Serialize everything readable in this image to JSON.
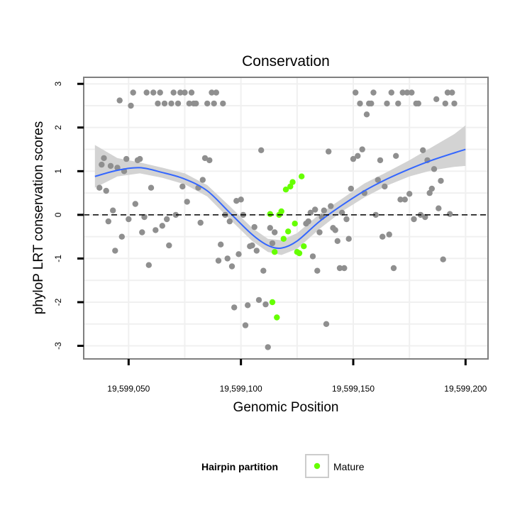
{
  "chart_data": {
    "type": "scatter",
    "title": "Conservation",
    "xlabel": "Genomic Position",
    "ylabel": "phyloP LRT conservation scores",
    "xlim": [
      19599030,
      19599210
    ],
    "ylim": [
      -3.3,
      3.15
    ],
    "x_ticks": [
      19599050,
      19599100,
      19599150,
      19599200
    ],
    "x_tick_labels": [
      "19,599,050",
      "19,599,100",
      "19,599,150",
      "19,599,200"
    ],
    "y_ticks": [
      -3,
      -2,
      -1,
      0,
      1,
      2,
      3
    ],
    "y_tick_labels": [
      "-3",
      "-2",
      "-1",
      "0",
      "1",
      "2",
      "3"
    ],
    "reference_line": {
      "y": 0,
      "style": "dashed",
      "color": "#000000"
    },
    "grid": true,
    "colors": {
      "other_points": "#8f8f8f",
      "mature_points": "#66ff00",
      "smooth_line": "#3366ff",
      "confidence_band": "#d3d3d3",
      "panel_border": "#7f7f7f",
      "grid": "#f0f0f0"
    },
    "legend": {
      "title": "Hairpin partition",
      "placement": "bottom",
      "entries": [
        {
          "label": "Mature",
          "color": "#66ff00"
        }
      ]
    },
    "series": [
      {
        "group": "other",
        "points": [
          [
            19599037,
            0.62
          ],
          [
            19599038,
            1.15
          ],
          [
            19599039,
            1.3
          ],
          [
            19599040,
            0.55
          ],
          [
            19599041,
            -0.15
          ],
          [
            19599042,
            1.12
          ],
          [
            19599043,
            0.1
          ],
          [
            19599044,
            -0.82
          ],
          [
            19599045,
            1.08
          ],
          [
            19599046,
            2.62
          ],
          [
            19599047,
            -0.5
          ],
          [
            19599048,
            1.0
          ],
          [
            19599049,
            1.28
          ],
          [
            19599050,
            -0.1
          ],
          [
            19599051,
            2.5
          ],
          [
            19599052,
            2.8
          ],
          [
            19599053,
            0.25
          ],
          [
            19599054,
            1.25
          ],
          [
            19599055,
            1.28
          ],
          [
            19599056,
            -0.4
          ],
          [
            19599057,
            -0.05
          ],
          [
            19599058,
            2.8
          ],
          [
            19599059,
            -1.15
          ],
          [
            19599060,
            0.62
          ],
          [
            19599061,
            2.8
          ],
          [
            19599062,
            -0.35
          ],
          [
            19599063,
            2.55
          ],
          [
            19599064,
            2.8
          ],
          [
            19599065,
            -0.25
          ],
          [
            19599066,
            2.55
          ],
          [
            19599067,
            -0.1
          ],
          [
            19599068,
            -0.7
          ],
          [
            19599069,
            2.55
          ],
          [
            19599070,
            2.8
          ],
          [
            19599071,
            0.0
          ],
          [
            19599072,
            2.55
          ],
          [
            19599073,
            2.8
          ],
          [
            19599074,
            0.65
          ],
          [
            19599075,
            2.8
          ],
          [
            19599076,
            0.3
          ],
          [
            19599077,
            2.55
          ],
          [
            19599078,
            2.8
          ],
          [
            19599079,
            2.55
          ],
          [
            19599080,
            2.55
          ],
          [
            19599081,
            0.62
          ],
          [
            19599082,
            -0.18
          ],
          [
            19599083,
            0.8
          ],
          [
            19599084,
            1.3
          ],
          [
            19599085,
            2.55
          ],
          [
            19599086,
            1.25
          ],
          [
            19599087,
            2.8
          ],
          [
            19599088,
            2.55
          ],
          [
            19599089,
            2.8
          ],
          [
            19599090,
            -1.05
          ],
          [
            19599091,
            -0.68
          ],
          [
            19599092,
            2.55
          ],
          [
            19599093,
            0.0
          ],
          [
            19599094,
            -1.0
          ],
          [
            19599095,
            -0.15
          ],
          [
            19599096,
            -1.18
          ],
          [
            19599097,
            -2.12
          ],
          [
            19599098,
            0.32
          ],
          [
            19599099,
            -0.9
          ],
          [
            19599100,
            0.35
          ],
          [
            19599101,
            0.0
          ],
          [
            19599102,
            -2.53
          ],
          [
            19599103,
            -2.07
          ],
          [
            19599104,
            -0.72
          ],
          [
            19599105,
            -0.7
          ],
          [
            19599106,
            -0.28
          ],
          [
            19599107,
            -0.82
          ],
          [
            19599108,
            -1.95
          ],
          [
            19599109,
            1.48
          ],
          [
            19599110,
            -1.28
          ],
          [
            19599111,
            -2.05
          ],
          [
            19599112,
            -3.03
          ],
          [
            19599113,
            -0.3
          ],
          [
            19599114,
            -0.65
          ],
          [
            19599115,
            -0.4
          ],
          [
            19599129,
            -0.2
          ],
          [
            19599130,
            -0.15
          ],
          [
            19599131,
            0.05
          ],
          [
            19599132,
            -0.95
          ],
          [
            19599133,
            0.12
          ],
          [
            19599134,
            -1.28
          ],
          [
            19599135,
            -0.4
          ],
          [
            19599136,
            -0.05
          ],
          [
            19599137,
            0.1
          ],
          [
            19599138,
            -2.5
          ],
          [
            19599139,
            1.45
          ],
          [
            19599140,
            0.2
          ],
          [
            19599141,
            -0.3
          ],
          [
            19599142,
            -0.35
          ],
          [
            19599143,
            -0.6
          ],
          [
            19599144,
            -1.22
          ],
          [
            19599145,
            0.05
          ],
          [
            19599146,
            -1.22
          ],
          [
            19599147,
            -0.1
          ],
          [
            19599148,
            -0.55
          ],
          [
            19599149,
            0.6
          ],
          [
            19599150,
            1.28
          ],
          [
            19599151,
            2.8
          ],
          [
            19599152,
            1.35
          ],
          [
            19599153,
            2.55
          ],
          [
            19599154,
            1.5
          ],
          [
            19599155,
            0.5
          ],
          [
            19599156,
            2.3
          ],
          [
            19599157,
            2.55
          ],
          [
            19599158,
            2.55
          ],
          [
            19599159,
            2.8
          ],
          [
            19599160,
            0.0
          ],
          [
            19599161,
            0.8
          ],
          [
            19599162,
            1.25
          ],
          [
            19599163,
            -0.5
          ],
          [
            19599164,
            0.65
          ],
          [
            19599165,
            2.55
          ],
          [
            19599166,
            -0.45
          ],
          [
            19599167,
            2.8
          ],
          [
            19599168,
            -1.22
          ],
          [
            19599169,
            1.35
          ],
          [
            19599170,
            2.55
          ],
          [
            19599171,
            0.35
          ],
          [
            19599172,
            2.8
          ],
          [
            19599173,
            0.35
          ],
          [
            19599174,
            2.8
          ],
          [
            19599175,
            0.48
          ],
          [
            19599176,
            2.8
          ],
          [
            19599177,
            -0.1
          ],
          [
            19599178,
            2.55
          ],
          [
            19599179,
            2.55
          ],
          [
            19599180,
            0.0
          ],
          [
            19599181,
            1.48
          ],
          [
            19599182,
            -0.05
          ],
          [
            19599183,
            1.25
          ],
          [
            19599184,
            0.5
          ],
          [
            19599185,
            0.6
          ],
          [
            19599186,
            1.05
          ],
          [
            19599187,
            2.65
          ],
          [
            19599188,
            0.15
          ],
          [
            19599189,
            0.78
          ],
          [
            19599190,
            -1.02
          ],
          [
            19599191,
            2.55
          ],
          [
            19599192,
            2.8
          ],
          [
            19599193,
            0.02
          ],
          [
            19599194,
            2.8
          ],
          [
            19599195,
            2.55
          ]
        ]
      },
      {
        "group": "Mature",
        "points": [
          [
            19599113,
            0.02
          ],
          [
            19599114,
            -2.0
          ],
          [
            19599115,
            -0.85
          ],
          [
            19599116,
            -2.35
          ],
          [
            19599117,
            0.0
          ],
          [
            19599118,
            0.08
          ],
          [
            19599119,
            -0.55
          ],
          [
            19599120,
            0.58
          ],
          [
            19599121,
            -0.38
          ],
          [
            19599122,
            0.65
          ],
          [
            19599123,
            0.75
          ],
          [
            19599124,
            -0.2
          ],
          [
            19599125,
            -0.85
          ],
          [
            19599126,
            -0.88
          ],
          [
            19599127,
            0.88
          ],
          [
            19599128,
            -0.72
          ]
        ]
      }
    ],
    "smooth": {
      "x": [
        19599035,
        19599045,
        19599055,
        19599065,
        19599075,
        19599085,
        19599095,
        19599105,
        19599112,
        19599118,
        19599125,
        19599135,
        19599145,
        19599155,
        19599165,
        19599175,
        19599185,
        19599195,
        19599200
      ],
      "y": [
        0.88,
        1.02,
        1.08,
        0.97,
        0.82,
        0.55,
        0.05,
        -0.45,
        -0.7,
        -0.76,
        -0.6,
        -0.15,
        0.22,
        0.55,
        0.82,
        1.05,
        1.25,
        1.42,
        1.5
      ],
      "lower": [
        0.62,
        0.88,
        0.95,
        0.85,
        0.7,
        0.42,
        -0.1,
        -0.6,
        -0.85,
        -0.92,
        -0.78,
        -0.32,
        0.08,
        0.4,
        0.67,
        0.88,
        1.02,
        1.1,
        1.12
      ],
      "upper": [
        1.6,
        1.3,
        1.2,
        1.08,
        0.95,
        0.68,
        0.2,
        -0.3,
        -0.55,
        -0.58,
        -0.42,
        0.02,
        0.37,
        0.72,
        0.98,
        1.25,
        1.55,
        1.85,
        2.05
      ]
    }
  }
}
